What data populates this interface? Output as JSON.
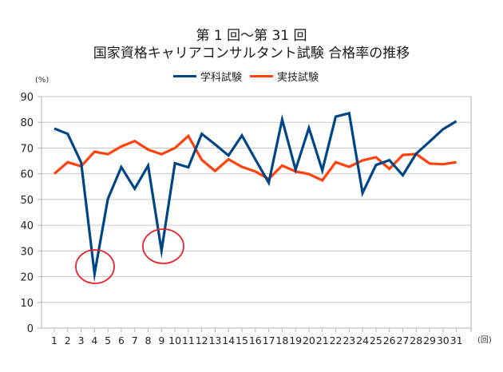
{
  "title": {
    "line1": "第 1 回〜第 31 回",
    "line2": "国家資格キャリアコンサルタント試験 合格率の推移"
  },
  "legend": [
    {
      "label": "学科試験",
      "color": "#004586"
    },
    {
      "label": "実技試験",
      "color": "#ff420e"
    }
  ],
  "axes": {
    "y_unit": "(%)",
    "x_unit": "(回)"
  },
  "annotations": [
    {
      "type": "ellipse",
      "color": "#e8222b",
      "target_category": 4,
      "series": "学科試験"
    },
    {
      "type": "ellipse",
      "color": "#e8222b",
      "target_category": 9,
      "series": "学科試験"
    }
  ],
  "chart_data": {
    "type": "line",
    "title": "第 1 回〜第 31 回 国家資格キャリアコンサルタント試験 合格率の推移",
    "xlabel": "(回)",
    "ylabel": "(%)",
    "ylim": [
      0,
      90
    ],
    "yticks": [
      0,
      10,
      20,
      30,
      40,
      50,
      60,
      70,
      80,
      90
    ],
    "grid": true,
    "legend_position": "top",
    "categories": [
      "1",
      "2",
      "3",
      "4",
      "5",
      "6",
      "7",
      "8",
      "9",
      "10",
      "11",
      "12",
      "13",
      "14",
      "15",
      "16",
      "17",
      "18",
      "19",
      "20",
      "21",
      "22",
      "23",
      "24",
      "25",
      "26",
      "27",
      "28",
      "29",
      "30",
      "31"
    ],
    "series": [
      {
        "name": "学科試験",
        "color": "#004586",
        "values": [
          77.6,
          75.5,
          64.4,
          21.1,
          50.2,
          62.6,
          54.2,
          63.2,
          30.1,
          64.1,
          62.5,
          75.5,
          71.4,
          67.1,
          74.9,
          65.6,
          56.5,
          81.1,
          61.6,
          77.8,
          61.3,
          82.2,
          83.5,
          52.5,
          63.4,
          65.3,
          59.4,
          67.8,
          72.5,
          77.3,
          80.4
        ]
      },
      {
        "name": "実技試験",
        "color": "#ff420e",
        "values": [
          60.0,
          64.5,
          62.9,
          68.6,
          67.6,
          70.6,
          72.7,
          69.4,
          67.6,
          70.0,
          74.7,
          65.4,
          61.1,
          65.6,
          62.7,
          60.9,
          58.0,
          63.2,
          60.9,
          59.9,
          57.4,
          64.5,
          62.7,
          65.2,
          66.4,
          61.9,
          67.3,
          67.7,
          64.0,
          63.7,
          64.5
        ]
      }
    ]
  }
}
